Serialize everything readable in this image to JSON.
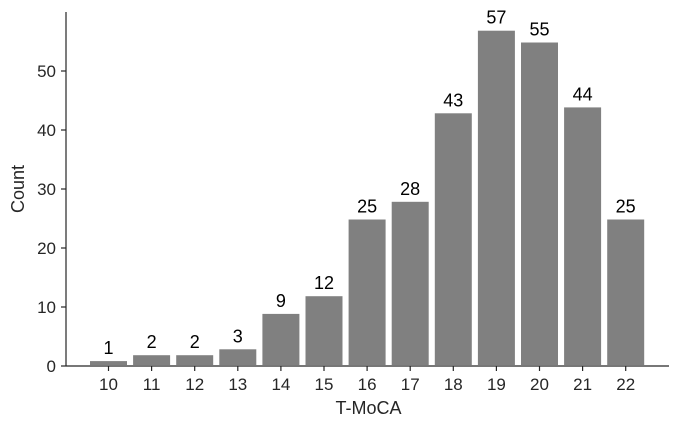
{
  "chart_data": {
    "type": "bar",
    "categories": [
      "10",
      "11",
      "12",
      "13",
      "14",
      "15",
      "16",
      "17",
      "18",
      "19",
      "20",
      "21",
      "22"
    ],
    "values": [
      1,
      2,
      2,
      3,
      9,
      12,
      25,
      28,
      43,
      57,
      55,
      44,
      25
    ],
    "xlabel": "T-MoCA",
    "ylabel": "Count",
    "ylim": [
      0,
      60
    ],
    "yticks": [
      0,
      10,
      20,
      30,
      40,
      50
    ],
    "grid": false,
    "bar_color": "#808080",
    "edge_color": "#ffffff"
  }
}
